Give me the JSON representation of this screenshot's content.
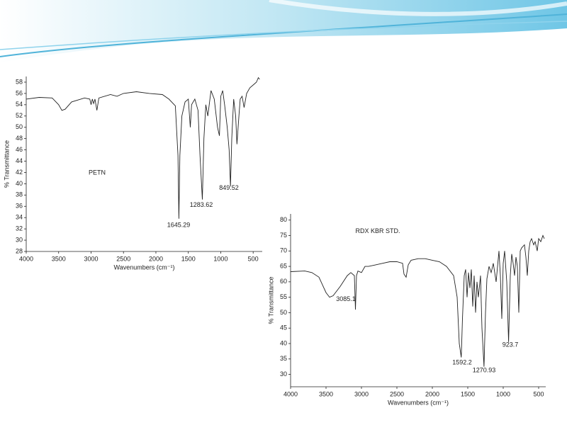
{
  "chart_data": [
    {
      "type": "line",
      "annotations": [
        {
          "text": "PETN",
          "x": 2907,
          "y": 41.9
        },
        {
          "text": "1645.29",
          "x": 1650,
          "y": 32.6
        },
        {
          "text": "1283.62",
          "x": 1300,
          "y": 36.2
        },
        {
          "text": "849.52",
          "x": 874,
          "y": 39.2
        }
      ],
      "x_label": "Wavenumbers (cm⁻¹)",
      "y_label": "% Transmittance",
      "xlim": [
        4000,
        360
      ],
      "ylim": [
        28,
        59
      ],
      "xticks": [
        4000,
        3500,
        3000,
        2500,
        2000,
        1500,
        1000,
        500
      ],
      "yticks": [
        28,
        30,
        32,
        34,
        36,
        38,
        40,
        42,
        44,
        46,
        48,
        50,
        52,
        54,
        56,
        58
      ],
      "series": [
        {
          "color": "#222222",
          "x": [
            4000,
            3800,
            3600,
            3500,
            3450,
            3400,
            3300,
            3100,
            3020,
            3000,
            2980,
            2960,
            2940,
            2910,
            2880,
            2700,
            2600,
            2500,
            2300,
            2100,
            1900,
            1800,
            1700,
            1660,
            1645.29,
            1630,
            1600,
            1550,
            1500,
            1470,
            1450,
            1400,
            1350,
            1320,
            1283.62,
            1260,
            1230,
            1200,
            1150,
            1100,
            1050,
            1020,
            1000,
            970,
            940,
            900,
            870,
            849.52,
            830,
            800,
            770,
            750,
            720,
            700,
            670,
            640,
            600,
            550,
            500,
            450,
            420,
            400
          ],
          "values": [
            55.0,
            55.3,
            55.2,
            54.0,
            53.0,
            53.2,
            54.5,
            55.2,
            55.0,
            54.0,
            55.0,
            54.2,
            55.0,
            53.0,
            55.2,
            55.8,
            55.5,
            56.0,
            56.3,
            56.0,
            55.8,
            55.0,
            53.8,
            45,
            33.8,
            45,
            52,
            54.5,
            55,
            50,
            54,
            55,
            53,
            45,
            37.2,
            48,
            54,
            52,
            56.5,
            55,
            50,
            48.5,
            55.5,
            56.5,
            54,
            50,
            46,
            39.5,
            48,
            55,
            52,
            47,
            52,
            55,
            55.5,
            53.5,
            56,
            57,
            57.5,
            58,
            58.8,
            58.5
          ]
        }
      ]
    },
    {
      "type": "line",
      "annotations": [
        {
          "text": "RDX KBR STD.",
          "x": 2770,
          "y": 76.3
        },
        {
          "text": "3085.1",
          "x": 3220,
          "y": 54.3
        },
        {
          "text": "1592.2",
          "x": 1580,
          "y": 33.8
        },
        {
          "text": "1270.93",
          "x": 1270,
          "y": 31.3
        },
        {
          "text": "923.7",
          "x": 900,
          "y": 39.5
        }
      ],
      "x_label": "Wavenumbers (cm⁻¹)",
      "y_label": "% Transmittance",
      "xlim": [
        4000,
        400
      ],
      "ylim": [
        26,
        82
      ],
      "xticks": [
        4000,
        3500,
        3000,
        2500,
        2000,
        1500,
        1000,
        500
      ],
      "yticks": [
        30,
        35,
        40,
        45,
        50,
        55,
        60,
        65,
        70,
        75,
        80
      ],
      "series": [
        {
          "color": "#222222",
          "x": [
            4000,
            3800,
            3700,
            3600,
            3550,
            3500,
            3450,
            3400,
            3300,
            3200,
            3150,
            3100,
            3085.1,
            3070,
            3050,
            3000,
            2950,
            2900,
            2800,
            2700,
            2600,
            2500,
            2420,
            2400,
            2370,
            2340,
            2300,
            2200,
            2100,
            2000,
            1900,
            1800,
            1700,
            1650,
            1620,
            1592.2,
            1575,
            1550,
            1530,
            1510,
            1490,
            1470,
            1450,
            1430,
            1410,
            1390,
            1370,
            1350,
            1320,
            1300,
            1270.93,
            1250,
            1230,
            1200,
            1170,
            1140,
            1100,
            1060,
            1040,
            1020,
            1000,
            980,
            950,
            923.7,
            900,
            880,
            860,
            840,
            820,
            800,
            780,
            760,
            740,
            700,
            680,
            660,
            640,
            620,
            600,
            570,
            550,
            520,
            500,
            470,
            440,
            420
          ],
          "values": [
            63.3,
            63.5,
            63.0,
            61.5,
            59,
            56.5,
            55,
            55.5,
            58.5,
            62,
            63,
            62,
            51,
            62,
            63.5,
            63,
            65,
            65,
            65.5,
            66,
            66.5,
            66.5,
            66,
            62.5,
            61.5,
            65.5,
            67,
            67.5,
            67.5,
            67,
            66.5,
            65,
            62,
            55,
            40,
            35.5,
            48,
            62,
            64,
            55,
            63,
            58,
            64,
            52,
            62,
            50,
            60,
            55,
            62,
            45,
            32.5,
            50,
            61,
            65,
            63,
            66,
            60,
            70,
            62,
            48,
            66,
            70,
            60,
            40.5,
            62,
            69,
            66,
            62,
            68,
            65,
            50,
            70,
            71,
            72,
            68,
            62,
            70,
            73,
            74,
            72,
            73,
            70,
            74,
            73,
            75,
            74
          ]
        }
      ]
    }
  ]
}
